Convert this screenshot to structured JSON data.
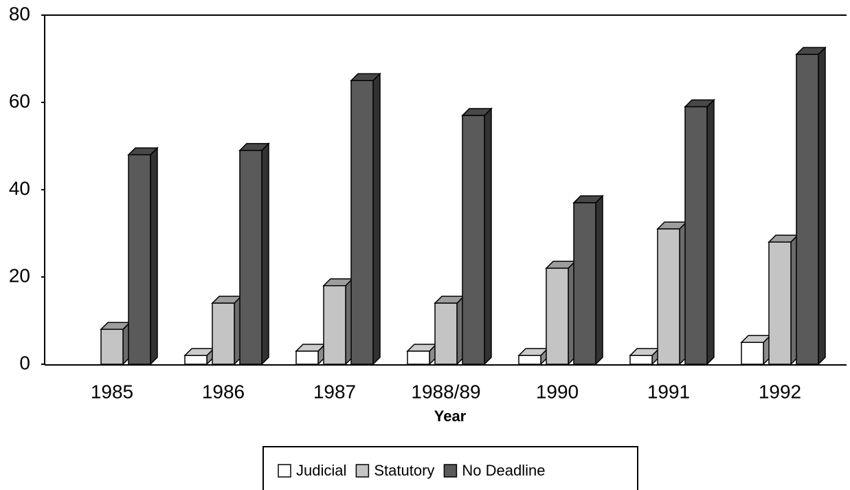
{
  "chart_data": {
    "type": "bar3d",
    "x_label": "Year",
    "categories": [
      "1985",
      "1986",
      "1987",
      "1988/89",
      "1990",
      "1991",
      "1992"
    ],
    "series": [
      {
        "name": "Judicial",
        "color": "#ffffff",
        "values": [
          0,
          2,
          3,
          3,
          2,
          2,
          5
        ]
      },
      {
        "name": "Statutory",
        "color": "#c4c4c4",
        "values": [
          8,
          14,
          18,
          14,
          22,
          31,
          28
        ]
      },
      {
        "name": "No Deadline",
        "color": "#5a5a5a",
        "values": [
          48,
          49,
          65,
          57,
          37,
          59,
          71
        ]
      }
    ],
    "ylim": [
      0,
      80
    ],
    "yticks": [
      0,
      20,
      40,
      60,
      80
    ],
    "legend": "bottom"
  }
}
